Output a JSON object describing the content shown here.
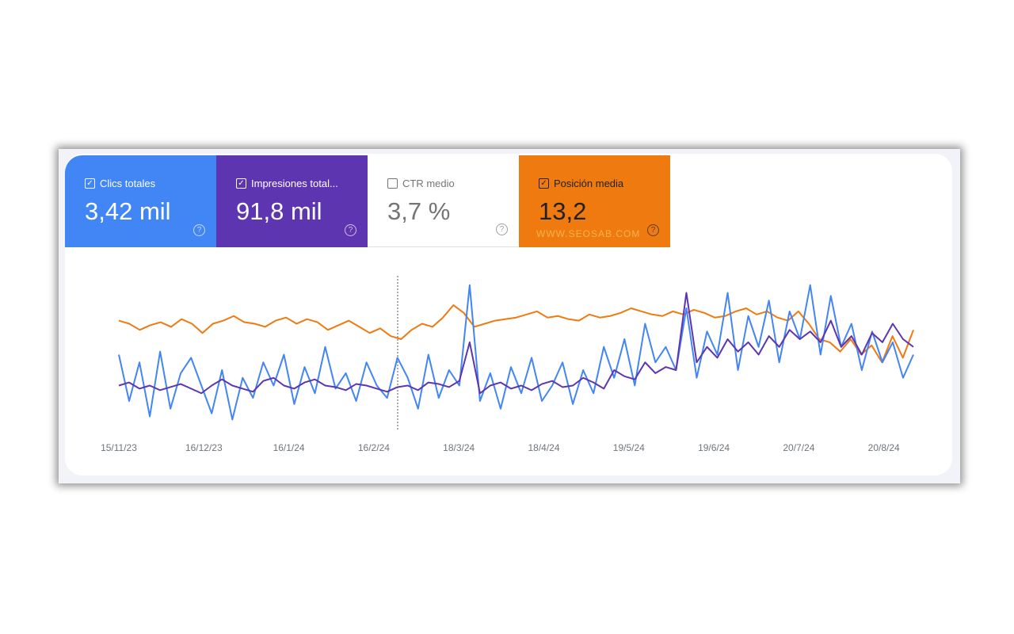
{
  "tiles": [
    {
      "label": "Clics totales",
      "value": "3,42 mil",
      "checked": true,
      "color": "#4285f4"
    },
    {
      "label": "Impresiones total...",
      "value": "91,8 mil",
      "checked": true,
      "color": "#5e35b1"
    },
    {
      "label": "CTR medio",
      "value": "3,7 %",
      "checked": false,
      "color": "#ffffff"
    },
    {
      "label": "Posición media",
      "value": "13,2",
      "checked": true,
      "color": "#ef7a10"
    }
  ],
  "watermark": "WWW.SEOSAB.COM",
  "help_icon": "?",
  "check_icon": "✓",
  "chart_data": {
    "type": "line",
    "title": "",
    "xlabel": "",
    "ylabel": "",
    "x_ticks": [
      "15/11/23",
      "16/12/23",
      "16/1/24",
      "16/2/24",
      "18/3/24",
      "18/4/24",
      "19/5/24",
      "19/6/24",
      "20/7/24",
      "20/8/24"
    ],
    "x_range": [
      "15/11/23",
      "27/8/24"
    ],
    "y_range_relative": [
      0,
      100
    ],
    "grid": false,
    "hover_marker_date": "20/2/24",
    "series": [
      {
        "name": "Posición media",
        "color": "#ef7a10",
        "values": [
          72,
          70,
          66,
          69,
          71,
          68,
          73,
          70,
          64,
          70,
          72,
          75,
          71,
          70,
          68,
          72,
          74,
          70,
          73,
          71,
          66,
          69,
          72,
          68,
          64,
          67,
          62,
          60,
          66,
          70,
          68,
          74,
          82,
          77,
          68,
          70,
          72,
          73,
          74,
          76,
          78,
          74,
          75,
          73,
          72,
          76,
          74,
          75,
          77,
          80,
          78,
          76,
          75,
          78,
          76,
          79,
          77,
          74,
          75,
          78,
          80,
          76,
          78,
          74,
          72,
          78,
          70,
          60,
          58,
          52,
          60,
          50,
          56,
          45,
          62,
          48,
          66
        ]
      },
      {
        "name": "Clics totales",
        "color": "#4285f4",
        "values": [
          50,
          20,
          45,
          10,
          52,
          15,
          38,
          48,
          30,
          12,
          40,
          8,
          35,
          22,
          45,
          30,
          50,
          18,
          42,
          25,
          55,
          28,
          38,
          20,
          45,
          30,
          22,
          48,
          35,
          15,
          50,
          22,
          40,
          30,
          95,
          20,
          38,
          15,
          42,
          25,
          48,
          20,
          30,
          45,
          18,
          40,
          25,
          55,
          35,
          60,
          30,
          70,
          45,
          55,
          40,
          80,
          35,
          65,
          50,
          90,
          40,
          75,
          55,
          85,
          45,
          78,
          60,
          95,
          50,
          88,
          55,
          70,
          40,
          65,
          45,
          58,
          35,
          50
        ]
      },
      {
        "name": "Impresiones totales",
        "color": "#5e35b1",
        "values": [
          30,
          32,
          28,
          30,
          27,
          29,
          31,
          28,
          25,
          30,
          34,
          30,
          28,
          26,
          33,
          35,
          30,
          28,
          32,
          34,
          30,
          29,
          27,
          31,
          30,
          28,
          26,
          29,
          30,
          27,
          32,
          31,
          29,
          33,
          58,
          25,
          30,
          32,
          28,
          30,
          27,
          31,
          33,
          29,
          30,
          35,
          32,
          28,
          40,
          36,
          34,
          45,
          38,
          42,
          40,
          90,
          45,
          55,
          48,
          60,
          52,
          58,
          50,
          62,
          55,
          66,
          60,
          65,
          58,
          72,
          55,
          62,
          50,
          64,
          58,
          70,
          60,
          55
        ]
      }
    ]
  }
}
